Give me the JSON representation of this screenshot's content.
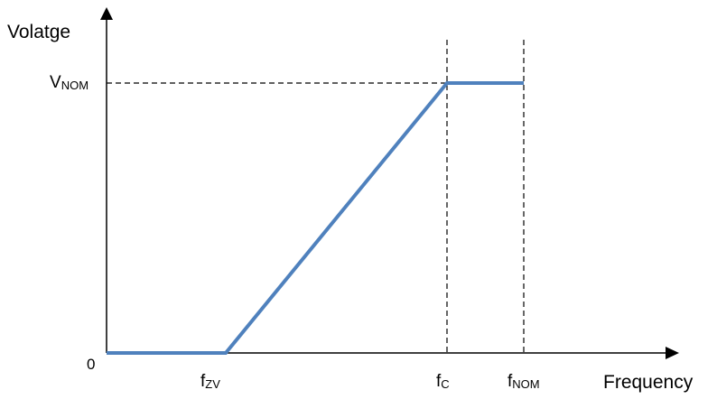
{
  "chart_data": {
    "type": "line",
    "ylabel": "Volatge",
    "xlabel": "Frequency",
    "y_origin_label": "0",
    "x_ticks": [
      {
        "main": "f",
        "sub": "ZV"
      },
      {
        "main": "f",
        "sub": "C"
      },
      {
        "main": "f",
        "sub": "NOM"
      }
    ],
    "y_ticks": [
      {
        "main": "V",
        "sub": "NOM"
      }
    ],
    "series": [
      {
        "points": [
          {
            "x": "0",
            "y": "0"
          },
          {
            "x": "fZV",
            "y": "0"
          },
          {
            "x": "fC",
            "y": "VNOM"
          },
          {
            "x": "fNOM",
            "y": "VNOM"
          }
        ]
      }
    ],
    "grid": false,
    "dashed_guides": [
      "fC",
      "fNOM",
      "VNOM"
    ],
    "colors": {
      "series": "#4f81bd",
      "axis": "#000000"
    }
  }
}
